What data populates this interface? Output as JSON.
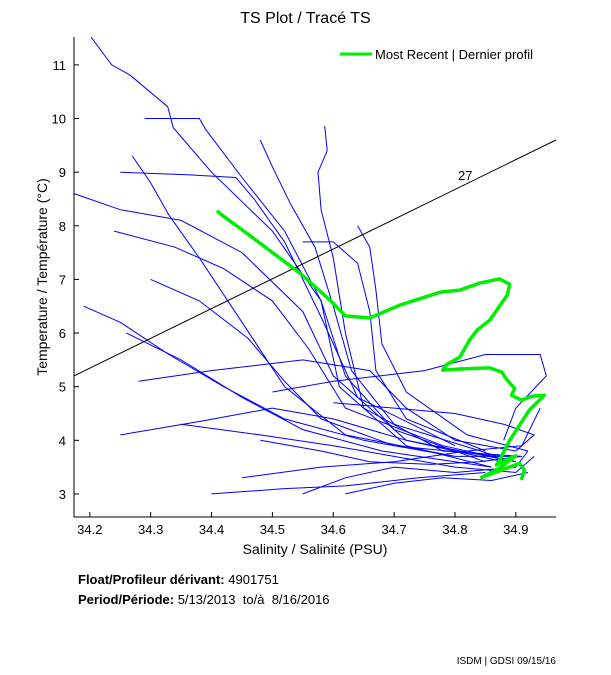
{
  "chart_data": {
    "type": "line",
    "title": "TS Plot / Tracé TS",
    "xlabel": "Salinity / Salinité (PSU)",
    "ylabel": "Temperature / Température (°C)",
    "xlim": [
      34.174,
      34.966
    ],
    "ylim": [
      2.57,
      11.52
    ],
    "xticks": [
      34.2,
      34.3,
      34.4,
      34.5,
      34.6,
      34.7,
      34.8,
      34.9
    ],
    "xtick_labels": [
      "34.2",
      "34.3",
      "34.4",
      "34.5",
      "34.6",
      "34.7",
      "34.8",
      "34.9"
    ],
    "yticks": [
      3,
      4,
      5,
      6,
      7,
      8,
      9,
      10,
      11
    ],
    "ytick_labels": [
      "3",
      "4",
      "5",
      "6",
      "7",
      "8",
      "9",
      "10",
      "11"
    ],
    "grid": false,
    "legend": {
      "position": "top-right",
      "entries": [
        {
          "label": "Most Recent | Dernier profil",
          "color": "#00ee00"
        }
      ]
    },
    "colors": {
      "profiles": "#0000ff",
      "recent": "#00ee00",
      "isopycnal": "#000000"
    },
    "isopycnal": {
      "label": "27",
      "points": [
        [
          34.174,
          5.2
        ],
        [
          34.966,
          9.6
        ]
      ],
      "label_at": [
        34.805,
        8.85
      ]
    },
    "recent_profile": [
      [
        34.409,
        8.28
      ],
      [
        34.417,
        8.2
      ],
      [
        34.446,
        7.96
      ],
      [
        34.545,
        7.12
      ],
      [
        34.594,
        6.62
      ],
      [
        34.62,
        6.32
      ],
      [
        34.66,
        6.28
      ],
      [
        34.709,
        6.52
      ],
      [
        34.775,
        6.76
      ],
      [
        34.808,
        6.8
      ],
      [
        34.84,
        6.93
      ],
      [
        34.873,
        7.01
      ],
      [
        34.89,
        6.91
      ],
      [
        34.886,
        6.71
      ],
      [
        34.857,
        6.24
      ],
      [
        34.837,
        6.06
      ],
      [
        34.824,
        5.87
      ],
      [
        34.808,
        5.55
      ],
      [
        34.785,
        5.4
      ],
      [
        34.78,
        5.31
      ],
      [
        34.808,
        5.33
      ],
      [
        34.857,
        5.35
      ],
      [
        34.877,
        5.27
      ],
      [
        34.886,
        5.12
      ],
      [
        34.898,
        4.97
      ],
      [
        34.893,
        4.84
      ],
      [
        34.909,
        4.75
      ],
      [
        34.926,
        4.82
      ],
      [
        34.947,
        4.84
      ],
      [
        34.922,
        4.56
      ],
      [
        34.906,
        4.28
      ],
      [
        34.89,
        4.0
      ],
      [
        34.873,
        3.63
      ],
      [
        34.868,
        3.54
      ],
      [
        34.89,
        3.67
      ],
      [
        34.9,
        3.71
      ],
      [
        34.873,
        3.48
      ],
      [
        34.844,
        3.31
      ],
      [
        34.906,
        3.57
      ],
      [
        34.914,
        3.44
      ],
      [
        34.909,
        3.26
      ]
    ],
    "profiles": [
      [
        [
          34.202,
          11.52
        ],
        [
          34.236,
          11.0
        ],
        [
          34.266,
          10.81
        ],
        [
          34.328,
          10.22
        ],
        [
          34.337,
          9.83
        ],
        [
          34.4,
          9.0
        ],
        [
          34.5,
          7.9
        ],
        [
          34.58,
          6.6
        ],
        [
          34.62,
          5.2
        ],
        [
          34.7,
          4.2
        ],
        [
          34.85,
          3.6
        ]
      ],
      [
        [
          34.174,
          8.6
        ],
        [
          34.25,
          8.3
        ],
        [
          34.35,
          8.1
        ],
        [
          34.45,
          7.5
        ],
        [
          34.55,
          6.4
        ],
        [
          34.6,
          5.2
        ],
        [
          34.72,
          4.0
        ],
        [
          34.88,
          3.6
        ]
      ],
      [
        [
          34.27,
          9.3
        ],
        [
          34.3,
          8.8
        ],
        [
          34.33,
          8.2
        ],
        [
          34.38,
          7.4
        ],
        [
          34.45,
          6.2
        ],
        [
          34.52,
          5.0
        ],
        [
          34.62,
          4.1
        ],
        [
          34.8,
          3.7
        ],
        [
          34.9,
          3.7
        ]
      ],
      [
        [
          34.29,
          10.0
        ],
        [
          34.32,
          10.0
        ],
        [
          34.38,
          10.0
        ],
        [
          34.39,
          9.8
        ],
        [
          34.45,
          8.9
        ],
        [
          34.52,
          7.9
        ],
        [
          34.58,
          6.6
        ],
        [
          34.61,
          5.0
        ],
        [
          34.72,
          3.9
        ],
        [
          34.86,
          3.5
        ]
      ],
      [
        [
          34.586,
          9.86
        ],
        [
          34.59,
          9.4
        ],
        [
          34.575,
          9.0
        ],
        [
          34.58,
          8.3
        ],
        [
          34.6,
          7.4
        ],
        [
          34.62,
          6.0
        ],
        [
          34.65,
          4.6
        ],
        [
          34.78,
          3.8
        ],
        [
          34.91,
          3.7
        ]
      ],
      [
        [
          34.48,
          9.6
        ],
        [
          34.5,
          9.1
        ],
        [
          34.53,
          8.4
        ],
        [
          34.57,
          7.6
        ],
        [
          34.6,
          6.5
        ],
        [
          34.63,
          5.3
        ],
        [
          34.7,
          4.3
        ],
        [
          34.87,
          3.7
        ]
      ],
      [
        [
          34.25,
          9.0
        ],
        [
          34.36,
          8.95
        ],
        [
          34.44,
          8.9
        ],
        [
          34.47,
          8.5
        ],
        [
          34.52,
          7.7
        ],
        [
          34.58,
          6.3
        ],
        [
          34.64,
          4.8
        ],
        [
          34.8,
          3.9
        ]
      ],
      [
        [
          34.24,
          7.9
        ],
        [
          34.34,
          7.6
        ],
        [
          34.42,
          7.2
        ],
        [
          34.5,
          6.6
        ],
        [
          34.56,
          5.7
        ],
        [
          34.62,
          4.6
        ],
        [
          34.78,
          3.9
        ],
        [
          34.9,
          3.6
        ]
      ],
      [
        [
          34.19,
          6.5
        ],
        [
          34.25,
          6.2
        ],
        [
          34.33,
          5.6
        ],
        [
          34.42,
          5.0
        ],
        [
          34.52,
          4.4
        ],
        [
          34.65,
          4.0
        ],
        [
          34.8,
          3.7
        ]
      ],
      [
        [
          34.25,
          4.1
        ],
        [
          34.38,
          4.35
        ],
        [
          34.5,
          4.6
        ],
        [
          34.6,
          4.4
        ],
        [
          34.72,
          4.0
        ],
        [
          34.9,
          3.6
        ]
      ],
      [
        [
          34.28,
          5.1
        ],
        [
          34.4,
          5.3
        ],
        [
          34.55,
          5.5
        ],
        [
          34.66,
          5.3
        ],
        [
          34.72,
          4.6
        ],
        [
          34.8,
          4.0
        ],
        [
          34.9,
          3.8
        ]
      ],
      [
        [
          34.4,
          3.0
        ],
        [
          34.52,
          3.1
        ],
        [
          34.62,
          3.15
        ],
        [
          34.74,
          3.3
        ],
        [
          34.85,
          3.4
        ]
      ],
      [
        [
          34.26,
          6.0
        ],
        [
          34.35,
          5.5
        ],
        [
          34.45,
          4.8
        ],
        [
          34.55,
          4.2
        ],
        [
          34.68,
          3.8
        ],
        [
          34.86,
          3.5
        ]
      ],
      [
        [
          34.3,
          7.0
        ],
        [
          34.38,
          6.6
        ],
        [
          34.46,
          5.9
        ],
        [
          34.52,
          5.1
        ],
        [
          34.58,
          4.4
        ],
        [
          34.7,
          3.9
        ],
        [
          34.88,
          3.7
        ]
      ],
      [
        [
          34.55,
          7.7
        ],
        [
          34.6,
          7.7
        ],
        [
          34.64,
          7.3
        ],
        [
          34.66,
          6.4
        ],
        [
          34.67,
          5.3
        ],
        [
          34.72,
          4.4
        ],
        [
          34.85,
          3.8
        ]
      ],
      [
        [
          34.64,
          8.0
        ],
        [
          34.66,
          7.6
        ],
        [
          34.67,
          6.8
        ],
        [
          34.68,
          5.8
        ],
        [
          34.72,
          4.9
        ],
        [
          34.82,
          4.1
        ],
        [
          34.92,
          3.8
        ]
      ],
      [
        [
          34.5,
          4.9
        ],
        [
          34.6,
          5.1
        ],
        [
          34.75,
          5.3
        ],
        [
          34.85,
          5.6
        ],
        [
          34.94,
          5.6
        ],
        [
          34.95,
          5.2
        ],
        [
          34.9,
          4.6
        ],
        [
          34.88,
          4.0
        ]
      ],
      [
        [
          34.35,
          4.3
        ],
        [
          34.48,
          4.1
        ],
        [
          34.6,
          3.9
        ],
        [
          34.7,
          3.7
        ],
        [
          34.8,
          3.5
        ],
        [
          34.9,
          3.4
        ],
        [
          34.93,
          3.7
        ]
      ],
      [
        [
          34.45,
          3.3
        ],
        [
          34.58,
          3.5
        ],
        [
          34.7,
          3.6
        ],
        [
          34.82,
          3.8
        ],
        [
          34.91,
          3.9
        ],
        [
          34.94,
          4.6
        ]
      ],
      [
        [
          34.55,
          3.0
        ],
        [
          34.62,
          3.3
        ],
        [
          34.7,
          3.5
        ],
        [
          34.8,
          3.4
        ],
        [
          34.9,
          3.5
        ],
        [
          34.92,
          3.8
        ]
      ],
      [
        [
          34.62,
          3.0
        ],
        [
          34.7,
          3.2
        ],
        [
          34.78,
          3.3
        ],
        [
          34.86,
          3.25
        ],
        [
          34.92,
          3.4
        ]
      ],
      [
        [
          34.48,
          4.0
        ],
        [
          34.58,
          3.8
        ],
        [
          34.66,
          3.6
        ],
        [
          34.76,
          3.55
        ],
        [
          34.84,
          3.6
        ],
        [
          34.91,
          3.7
        ]
      ],
      [
        [
          34.6,
          4.7
        ],
        [
          34.7,
          4.6
        ],
        [
          34.8,
          4.5
        ],
        [
          34.88,
          4.3
        ],
        [
          34.93,
          4.1
        ],
        [
          34.9,
          3.8
        ]
      ]
    ]
  },
  "info": {
    "float_label": "Float/Profileur dérivant:",
    "float_value": "4901751",
    "period_label": "Period/Période:",
    "period_from": "5/13/2013",
    "period_to_label": "to/à",
    "period_to": "8/16/2016"
  },
  "credit": "ISDM | GDSI  09/15/16"
}
